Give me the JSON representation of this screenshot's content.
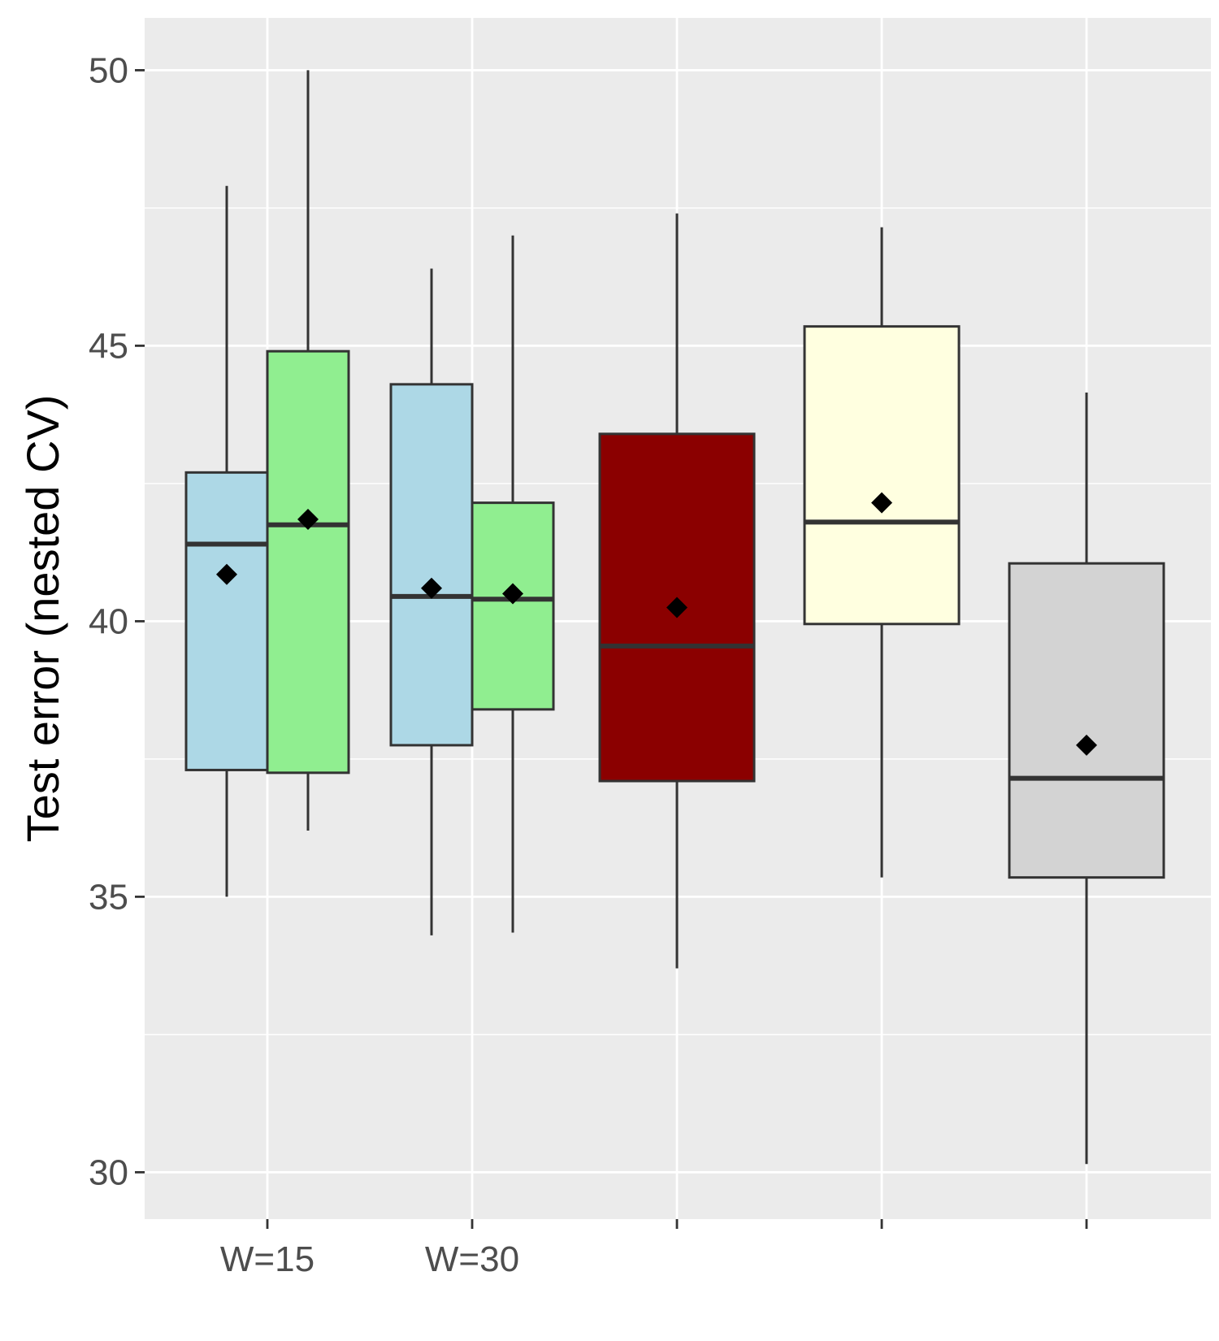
{
  "chart_data": {
    "type": "box",
    "title": "",
    "xlabel": "",
    "ylabel": "Test error (nested CV)",
    "ylim": [
      29.15,
      50.95
    ],
    "yticks": [
      30,
      35,
      40,
      45,
      50
    ],
    "x_positions": [
      1,
      2,
      3,
      4,
      5
    ],
    "x_tick_labels": [
      "W=15",
      "W=30",
      "",
      "",
      ""
    ],
    "grid": true,
    "background": "#ebebeb",
    "outline_color": "#333333",
    "mean_marker": "diamond",
    "boxes": [
      {
        "x": 1,
        "offset": "left",
        "color": "#add8e6",
        "whisker_low": 35.0,
        "q1": 37.3,
        "median": 41.4,
        "q3": 42.7,
        "whisker_high": 47.9,
        "mean": 40.85
      },
      {
        "x": 1,
        "offset": "right",
        "color": "#90ee90",
        "whisker_low": 36.2,
        "q1": 37.25,
        "median": 41.75,
        "q3": 44.9,
        "whisker_high": 50.0,
        "mean": 41.85
      },
      {
        "x": 2,
        "offset": "left",
        "color": "#add8e6",
        "whisker_low": 34.3,
        "q1": 37.75,
        "median": 40.45,
        "q3": 44.3,
        "whisker_high": 46.4,
        "mean": 40.6
      },
      {
        "x": 2,
        "offset": "right",
        "color": "#90ee90",
        "whisker_low": 34.35,
        "q1": 38.4,
        "median": 40.4,
        "q3": 42.15,
        "whisker_high": 47.0,
        "mean": 40.5
      },
      {
        "x": 3,
        "offset": "center",
        "color": "#8b0000",
        "whisker_low": 33.7,
        "q1": 37.1,
        "median": 39.55,
        "q3": 43.4,
        "whisker_high": 47.4,
        "mean": 40.25
      },
      {
        "x": 4,
        "offset": "center",
        "color": "#ffffe0",
        "whisker_low": 35.35,
        "q1": 39.95,
        "median": 41.8,
        "q3": 45.35,
        "whisker_high": 47.15,
        "mean": 42.15
      },
      {
        "x": 5,
        "offset": "center",
        "color": "#d3d3d3",
        "whisker_low": 30.15,
        "q1": 35.35,
        "median": 37.15,
        "q3": 41.05,
        "whisker_high": 44.15,
        "mean": 37.75
      }
    ]
  }
}
